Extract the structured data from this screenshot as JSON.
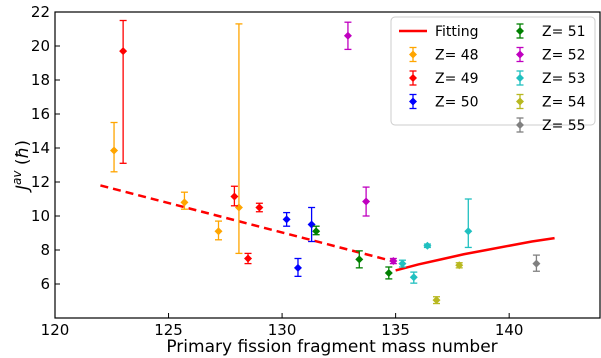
{
  "chart_data": {
    "type": "scatter",
    "xlabel": "Primary fission fragment mass number",
    "ylabel_main": "J",
    "ylabel_sup": "av",
    "ylabel_unit": "(ħ)",
    "xlim": [
      120,
      144
    ],
    "ylim": [
      4,
      22
    ],
    "xticks": [
      120,
      125,
      130,
      135,
      140
    ],
    "yticks": [
      6,
      8,
      10,
      12,
      14,
      16,
      18,
      20,
      22
    ],
    "grid": false,
    "legend_position": "top-right",
    "legend_columns": 2,
    "fitting": {
      "name": "Fitting",
      "color": "#ff0000",
      "segments": [
        {
          "style": "dashed",
          "points": [
            [
              122,
              11.8
            ],
            [
              135,
              7.3
            ]
          ]
        },
        {
          "style": "solid",
          "points": [
            [
              135,
              6.8
            ],
            [
              136,
              7.15
            ],
            [
              137,
              7.45
            ],
            [
              138,
              7.75
            ],
            [
              139,
              8.0
            ],
            [
              140,
              8.25
            ],
            [
              141,
              8.5
            ],
            [
              142,
              8.7
            ]
          ]
        }
      ]
    },
    "series": [
      {
        "name": "Z= 48",
        "color": "#ffa500",
        "points": [
          {
            "x": 122.6,
            "y": 13.85,
            "lo": 12.6,
            "hi": 15.5
          },
          {
            "x": 125.7,
            "y": 10.8,
            "lo": 10.4,
            "hi": 11.4
          },
          {
            "x": 127.2,
            "y": 9.1,
            "lo": 8.6,
            "hi": 9.7
          },
          {
            "x": 128.1,
            "y": 10.5,
            "lo": 7.8,
            "hi": 21.3
          }
        ]
      },
      {
        "name": "Z= 49",
        "color": "#ff0000",
        "points": [
          {
            "x": 123.0,
            "y": 19.7,
            "lo": 13.1,
            "hi": 21.5
          },
          {
            "x": 127.9,
            "y": 11.15,
            "lo": 10.6,
            "hi": 11.75
          },
          {
            "x": 128.5,
            "y": 7.5,
            "lo": 7.2,
            "hi": 7.8
          },
          {
            "x": 129.0,
            "y": 10.5,
            "lo": 10.25,
            "hi": 10.75
          }
        ]
      },
      {
        "name": "Z= 50",
        "color": "#0000ff",
        "points": [
          {
            "x": 130.2,
            "y": 9.8,
            "lo": 9.4,
            "hi": 10.2
          },
          {
            "x": 130.7,
            "y": 6.95,
            "lo": 6.45,
            "hi": 7.5
          },
          {
            "x": 131.3,
            "y": 9.5,
            "lo": 8.5,
            "hi": 10.5
          }
        ]
      },
      {
        "name": "Z= 51",
        "color": "#008000",
        "points": [
          {
            "x": 131.5,
            "y": 9.1,
            "lo": 8.9,
            "hi": 9.4
          },
          {
            "x": 133.4,
            "y": 7.45,
            "lo": 6.95,
            "hi": 7.95
          },
          {
            "x": 134.7,
            "y": 6.65,
            "lo": 6.3,
            "hi": 7.0
          }
        ]
      },
      {
        "name": "Z= 52",
        "color": "#c000c0",
        "points": [
          {
            "x": 132.9,
            "y": 20.6,
            "lo": 19.8,
            "hi": 21.4
          },
          {
            "x": 133.7,
            "y": 10.85,
            "lo": 10.0,
            "hi": 11.7
          },
          {
            "x": 134.9,
            "y": 7.35,
            "lo": 7.2,
            "hi": 7.5
          }
        ]
      },
      {
        "name": "Z= 53",
        "color": "#20c0c0",
        "points": [
          {
            "x": 135.3,
            "y": 7.2,
            "lo": 7.0,
            "hi": 7.4
          },
          {
            "x": 135.8,
            "y": 6.4,
            "lo": 6.05,
            "hi": 6.7
          },
          {
            "x": 136.4,
            "y": 8.25,
            "lo": 8.15,
            "hi": 8.35
          },
          {
            "x": 138.2,
            "y": 9.1,
            "lo": 8.15,
            "hi": 11.0
          }
        ]
      },
      {
        "name": "Z= 54",
        "color": "#b8b820",
        "points": [
          {
            "x": 136.8,
            "y": 5.05,
            "lo": 4.85,
            "hi": 5.25
          },
          {
            "x": 137.8,
            "y": 7.1,
            "lo": 6.95,
            "hi": 7.25
          }
        ]
      },
      {
        "name": "Z= 55",
        "color": "#808080",
        "points": [
          {
            "x": 141.2,
            "y": 7.2,
            "lo": 6.75,
            "hi": 7.7
          }
        ]
      }
    ]
  }
}
